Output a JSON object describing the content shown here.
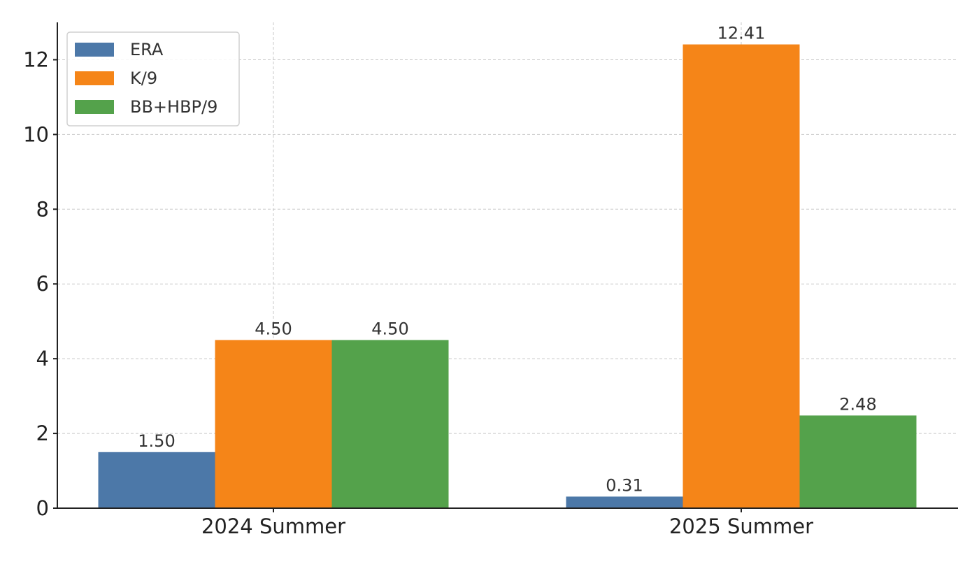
{
  "chart_data": {
    "type": "bar",
    "title": "",
    "xlabel": "",
    "ylabel": "",
    "categories": [
      "2024 Summer",
      "2025 Summer"
    ],
    "series": [
      {
        "name": "ERA",
        "values": [
          1.5,
          0.31
        ],
        "labels": [
          "1.50",
          "0.31"
        ],
        "color": "#4c78a8"
      },
      {
        "name": "K/9",
        "values": [
          4.5,
          12.41
        ],
        "labels": [
          "4.50",
          "12.41"
        ],
        "color": "#f58518"
      },
      {
        "name": "BB+HBP/9",
        "values": [
          4.5,
          2.48
        ],
        "labels": [
          "4.50",
          "2.48"
        ],
        "color": "#54a24b"
      }
    ],
    "ylim": [
      0,
      13
    ],
    "yticks": [
      0,
      2,
      4,
      6,
      8,
      10,
      12
    ],
    "grid": true,
    "grid_style": "dashed",
    "legend": {
      "position": "top-left"
    }
  }
}
